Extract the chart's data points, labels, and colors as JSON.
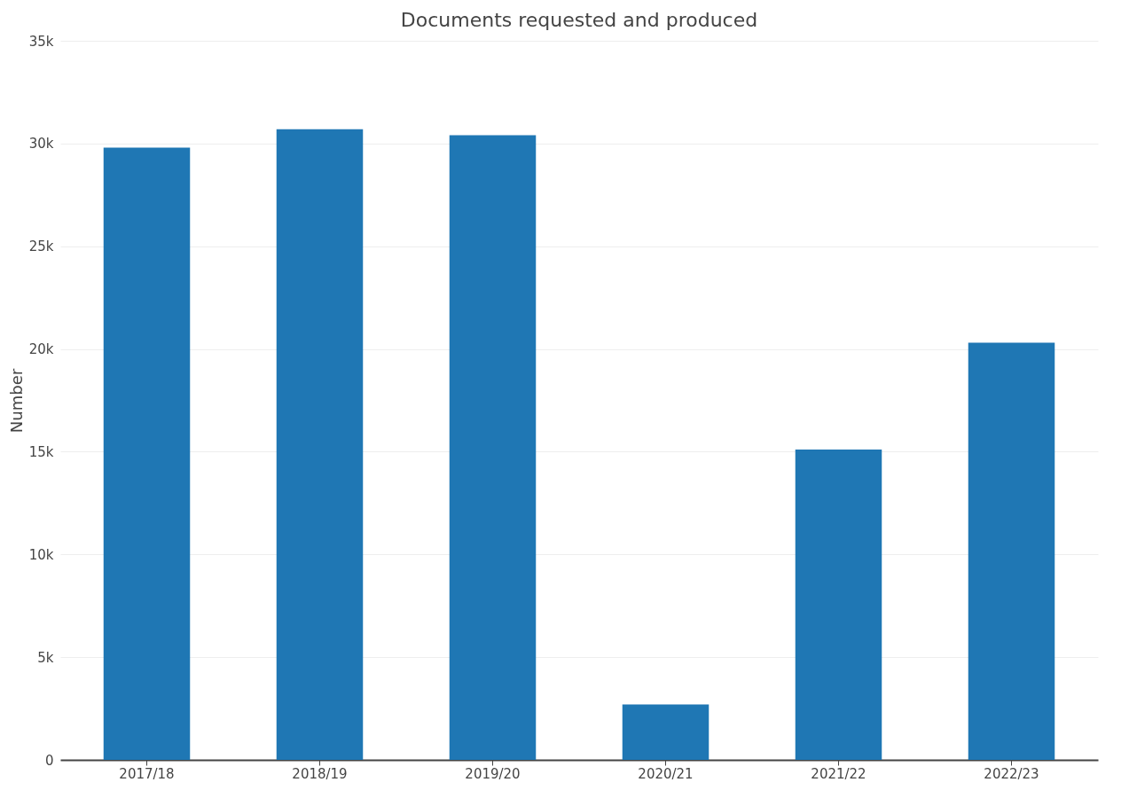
{
  "chart_data": {
    "type": "bar",
    "title": "Documents requested and produced",
    "ylabel": "Number",
    "categories": [
      "2017/18",
      "2018/19",
      "2019/20",
      "2020/21",
      "2021/22",
      "2022/23"
    ],
    "values": [
      29800,
      30700,
      30400,
      2700,
      15100,
      20300
    ],
    "color": "#1f77b4",
    "ylim": [
      0,
      35000
    ],
    "yticks": [
      {
        "value": 0,
        "label": "0"
      },
      {
        "value": 5000,
        "label": "5k"
      },
      {
        "value": 10000,
        "label": "10k"
      },
      {
        "value": 15000,
        "label": "15k"
      },
      {
        "value": 20000,
        "label": "20k"
      },
      {
        "value": 25000,
        "label": "25k"
      },
      {
        "value": 30000,
        "label": "30k"
      },
      {
        "value": 35000,
        "label": "35k"
      }
    ],
    "grid": "y"
  }
}
